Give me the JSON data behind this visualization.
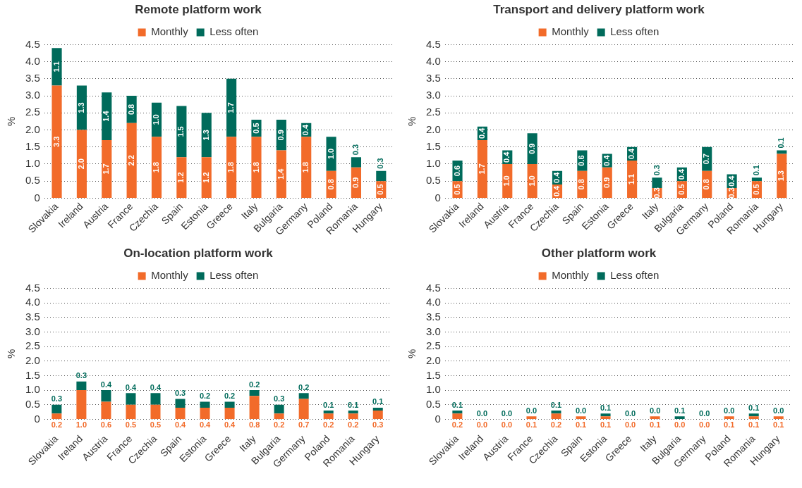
{
  "chart_data": [
    {
      "type": "bar",
      "title": "Remote platform work",
      "ylabel": "%",
      "stacked": true,
      "legend": "top",
      "grid": "y",
      "ylim": [
        0,
        4.5
      ],
      "yticks": [
        0,
        0.5,
        {
          "value": 1,
          "label": "1.0"
        },
        1.5,
        {
          "value": 2,
          "label": "2.0"
        },
        2.5,
        {
          "value": 3,
          "label": "3.0"
        },
        3.5,
        {
          "value": 4,
          "label": "4.0"
        },
        4.5
      ],
      "categories": [
        "Slovakia",
        "Ireland",
        "Austria",
        "France",
        "Czechia",
        "Spain",
        "Estonia",
        "Greece",
        "Italy",
        "Bulgaria",
        "Germany",
        "Poland",
        "Romania",
        "Hungary"
      ],
      "series": [
        {
          "name": "Monthly",
          "color": "#f26b2a",
          "values": [
            3.3,
            2.0,
            1.7,
            2.2,
            1.8,
            1.2,
            1.2,
            1.8,
            1.8,
            1.4,
            1.8,
            0.8,
            0.9,
            0.5
          ],
          "value_labels": [
            "3.3",
            "2.0",
            "1.7",
            "2.2",
            "1.8",
            "1.2",
            "1.2",
            "1.8",
            "1.8",
            "1.4",
            "1.8",
            "0.8",
            "0.9",
            "0.5"
          ]
        },
        {
          "name": "Less often",
          "color": "#006b5b",
          "values": [
            1.1,
            1.3,
            1.4,
            0.8,
            1.0,
            1.5,
            1.3,
            1.7,
            0.5,
            0.9,
            0.4,
            1.0,
            0.3,
            0.3
          ],
          "value_labels": [
            "1.1",
            "1.3",
            "1.4",
            "0.8",
            "1.0",
            "1.5",
            "1.3",
            "1.7",
            "0.5",
            "0.9",
            "0.4",
            "1.0",
            "0.3",
            "0.3"
          ]
        }
      ]
    },
    {
      "type": "bar",
      "title": "Transport and delivery platform work",
      "ylabel": "%",
      "stacked": true,
      "legend": "top",
      "grid": "y",
      "ylim": [
        0,
        4.5
      ],
      "yticks": [
        0,
        0.5,
        {
          "value": 1,
          "label": "1.0"
        },
        1.5,
        {
          "value": 2,
          "label": "2.0"
        },
        2.5,
        {
          "value": 3,
          "label": "3.0"
        },
        3.5,
        {
          "value": 4,
          "label": "4.0"
        },
        4.5
      ],
      "categories": [
        "Slovakia",
        "Ireland",
        "Austria",
        "France",
        "Czechia",
        "Spain",
        "Estonia",
        "Greece",
        "Italy",
        "Bulgaria",
        "Germany",
        "Poland",
        "Romania",
        "Hungary"
      ],
      "series": [
        {
          "name": "Monthly",
          "color": "#f26b2a",
          "values": [
            0.5,
            1.7,
            1.0,
            1.0,
            0.4,
            0.8,
            0.9,
            1.1,
            0.3,
            0.5,
            0.8,
            0.3,
            0.5,
            1.3
          ],
          "value_labels": [
            "0.5",
            "1.7",
            "1.0",
            "1.0",
            "0.4",
            "0.8",
            "0.9",
            "1.1",
            "0.3",
            "0.5",
            "0.8",
            "0.3",
            "0.5",
            "1.3"
          ]
        },
        {
          "name": "Less often",
          "color": "#006b5b",
          "values": [
            0.6,
            0.4,
            0.4,
            0.9,
            0.4,
            0.6,
            0.4,
            0.4,
            0.3,
            0.4,
            0.7,
            0.4,
            0.1,
            0.1
          ],
          "value_labels": [
            "0.6",
            "0.4",
            "0.4",
            "0.9",
            "0.4",
            "0.6",
            "0.4",
            "0.4",
            "0.3",
            "0.4",
            "0.7",
            "0.4",
            "0.1",
            "0.1"
          ]
        }
      ]
    },
    {
      "type": "bar",
      "title": "On-location platform work",
      "ylabel": "%",
      "stacked": true,
      "legend": "top",
      "grid": "y",
      "ylim": [
        0,
        4.5
      ],
      "yticks": [
        0,
        0.5,
        {
          "value": 1,
          "label": "1.0"
        },
        1.5,
        {
          "value": 2,
          "label": "2.0"
        },
        2.5,
        {
          "value": 3,
          "label": "3.0"
        },
        3.5,
        {
          "value": 4,
          "label": "4.0"
        },
        4.5
      ],
      "categories": [
        "Slovakia",
        "Ireland",
        "Austria",
        "France",
        "Czechia",
        "Spain",
        "Estonia",
        "Greece",
        "Italy",
        "Bulgaria",
        "Germany",
        "Poland",
        "Romania",
        "Hungary"
      ],
      "series": [
        {
          "name": "Monthly",
          "color": "#f26b2a",
          "values": [
            0.2,
            1.0,
            0.6,
            0.5,
            0.5,
            0.4,
            0.4,
            0.4,
            0.8,
            0.2,
            0.7,
            0.2,
            0.2,
            0.3
          ],
          "value_labels": [
            "0.2",
            "1.0",
            "0.6",
            "0.5",
            "0.5",
            "0.4",
            "0.4",
            "0.4",
            "0.8",
            "0.2",
            "0.7",
            "0.2",
            "0.2",
            "0.3"
          ]
        },
        {
          "name": "Less often",
          "color": "#006b5b",
          "values": [
            0.3,
            0.3,
            0.4,
            0.4,
            0.4,
            0.3,
            0.2,
            0.2,
            0.2,
            0.3,
            0.2,
            0.1,
            0.1,
            0.1
          ],
          "value_labels": [
            "0.3",
            "0.3",
            "0.4",
            "0.4",
            "0.4",
            "0.3",
            "0.2",
            "0.2",
            "0.2",
            "0.3",
            "0.2",
            "0.1",
            "0.1",
            "0.1"
          ]
        }
      ]
    },
    {
      "type": "bar",
      "title": "Other platform work",
      "ylabel": "%",
      "stacked": true,
      "legend": "top",
      "grid": "y",
      "ylim": [
        0,
        4.5
      ],
      "yticks": [
        0,
        0.5,
        {
          "value": 1,
          "label": "1.0"
        },
        1.5,
        {
          "value": 2,
          "label": "2.0"
        },
        2.5,
        {
          "value": 3,
          "label": "3.0"
        },
        3.5,
        {
          "value": 4,
          "label": "4.0"
        },
        4.5
      ],
      "categories": [
        "Slovakia",
        "Ireland",
        "Austria",
        "France",
        "Czechia",
        "Spain",
        "Estonia",
        "Greece",
        "Italy",
        "Bulgaria",
        "Germany",
        "Poland",
        "Romania",
        "Hungary"
      ],
      "series": [
        {
          "name": "Monthly",
          "color": "#f26b2a",
          "values": [
            0.2,
            0.0,
            0.0,
            0.1,
            0.2,
            0.1,
            0.1,
            0.0,
            0.1,
            0.0,
            0.0,
            0.1,
            0.1,
            0.1
          ],
          "value_labels": [
            "0.2",
            "0.0",
            "0.0",
            "0.1",
            "0.2",
            "0.1",
            "0.1",
            "0.0",
            "0.1",
            "0.0",
            "0.0",
            "0.1",
            "0.1",
            "0.1"
          ]
        },
        {
          "name": "Less often",
          "color": "#006b5b",
          "values": [
            0.1,
            0.0,
            0.0,
            0.0,
            0.1,
            0.0,
            0.1,
            0.0,
            0.0,
            0.1,
            0.0,
            0.0,
            0.1,
            0.0
          ],
          "value_labels": [
            "0.1",
            "0.0",
            "0.0",
            "0.0",
            "0.1",
            "0.0",
            "0.1",
            "0.0",
            "0.0",
            "0.1",
            "0.0",
            "0.0",
            "0.1",
            "0.0"
          ]
        }
      ]
    }
  ]
}
